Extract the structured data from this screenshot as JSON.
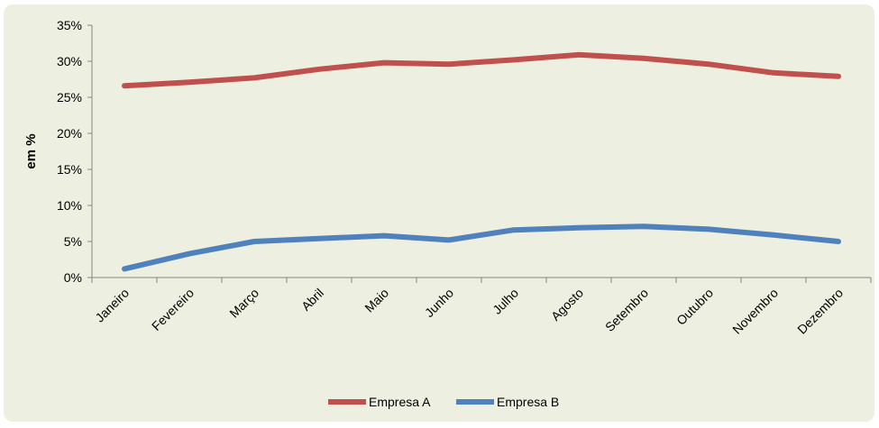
{
  "chart_data": {
    "type": "line",
    "categories": [
      "Janeiro",
      "Fevereiro",
      "Março",
      "Abril",
      "Maio",
      "Junho",
      "Julho",
      "Agosto",
      "Setembro",
      "Outubro",
      "Novembro",
      "Dezembro"
    ],
    "series": [
      {
        "name": "Empresa A",
        "color": "#c0504d",
        "values": [
          26.6,
          27.1,
          27.7,
          28.9,
          29.8,
          29.6,
          30.2,
          30.9,
          30.4,
          29.6,
          28.4,
          27.9
        ]
      },
      {
        "name": "Empresa B",
        "color": "#4f81bd",
        "values": [
          1.2,
          3.3,
          5.0,
          5.4,
          5.8,
          5.2,
          6.6,
          6.9,
          7.1,
          6.7,
          5.9,
          5.0
        ]
      }
    ],
    "ylabel": "em %",
    "ylim": [
      0,
      35
    ],
    "yticks": [
      "0%",
      "5%",
      "10%",
      "15%",
      "20%",
      "25%",
      "30%",
      "35%"
    ],
    "ytick_values": [
      0,
      5,
      10,
      15,
      20,
      25,
      30,
      35
    ],
    "grid": false,
    "legend_position": "bottom"
  }
}
